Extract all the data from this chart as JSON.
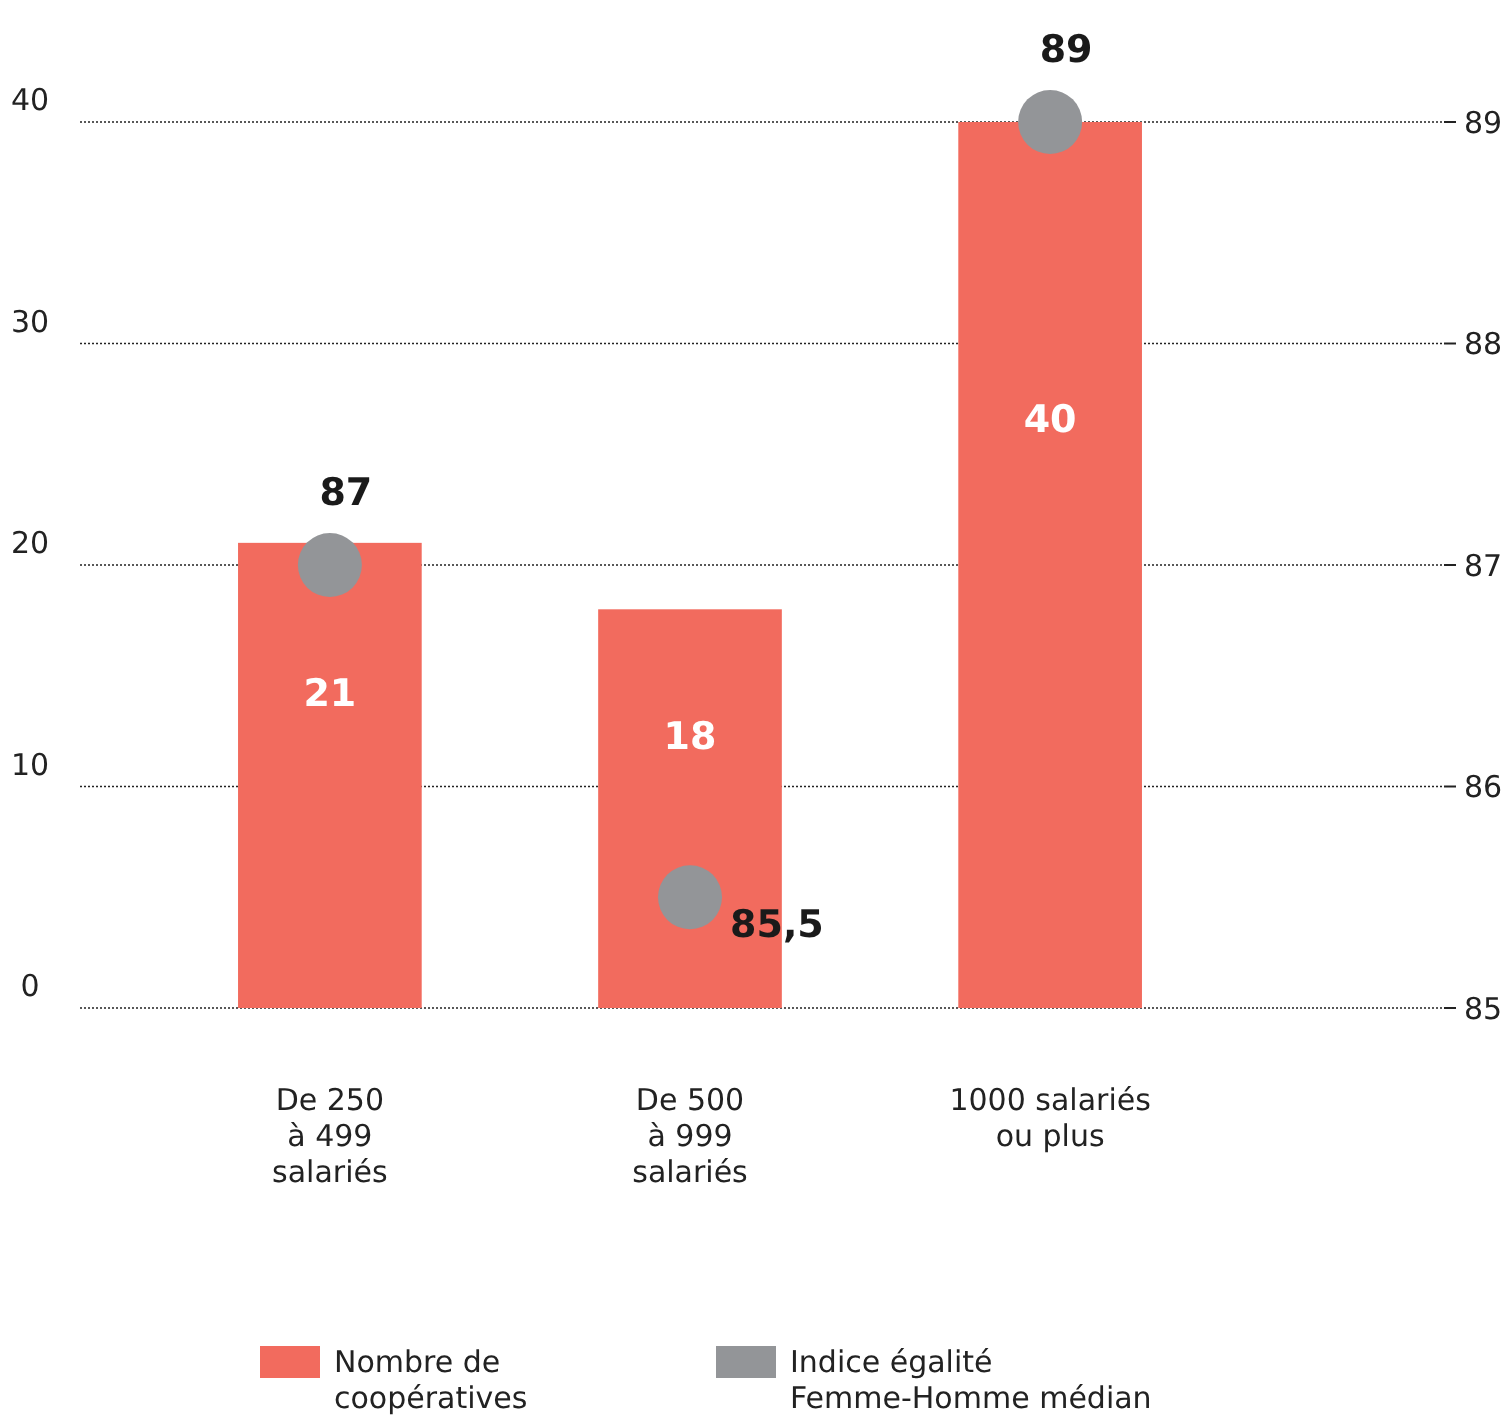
{
  "chart_data": {
    "type": "bar",
    "categories": [
      "De 250\nà 499\nsalariés",
      "De 500\nà 999\nsalariés",
      "1000 salariés\nou plus"
    ],
    "series": [
      {
        "name": "Nombre de coopératives",
        "color": "#f26b5e",
        "values": [
          21,
          18,
          40
        ],
        "data_labels": true
      },
      {
        "name": "Indice égalité Femme-Homme médian",
        "type": "scatter",
        "axis": "y2",
        "color": "#939598",
        "values": [
          87,
          85.5,
          89
        ],
        "value_labels": [
          "87",
          "85,5",
          "89"
        ]
      }
    ],
    "ylim": [
      0,
      40
    ],
    "yticks": [
      0,
      10,
      20,
      30,
      40
    ],
    "y2lim": [
      85,
      89
    ],
    "y2ticks": [
      85,
      86,
      87,
      88,
      89
    ],
    "grid": "y",
    "legend": "bottom",
    "marker": "circle"
  }
}
